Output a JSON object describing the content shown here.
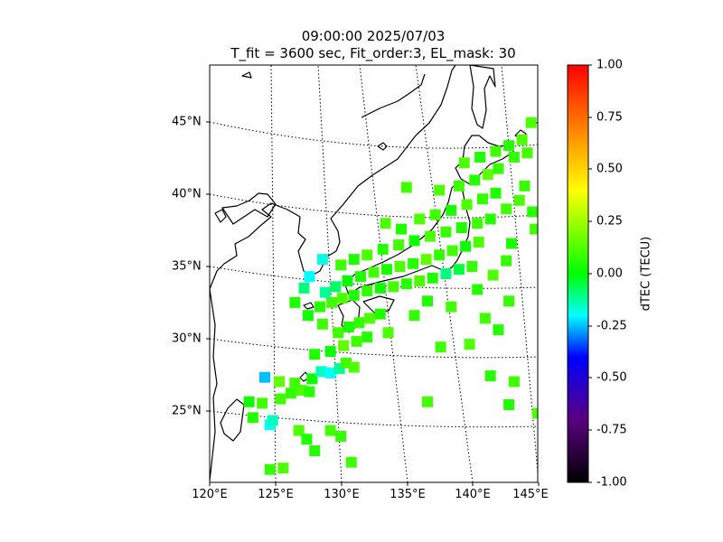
{
  "title_line1": "09:00:00 2025/07/03",
  "title_line2": "T_fit = 3600 sec, Fit_order:3, EL_mask: 30",
  "map": {
    "lon_range": [
      120,
      145
    ],
    "lat_range": [
      20,
      49
    ],
    "lon_ticks": [
      "120°E",
      "125°E",
      "130°E",
      "135°E",
      "140°E",
      "145°E"
    ],
    "lat_ticks": [
      "25°N",
      "30°N",
      "35°N",
      "40°N",
      "45°N"
    ],
    "graticule": "dotted",
    "coastline_color": "#000000"
  },
  "colorbar": {
    "label": "dTEC (TECU)",
    "range": [
      -1.0,
      1.0
    ],
    "ticks": [
      "1.00",
      "0.75",
      "0.50",
      "0.25",
      "0.00",
      "-0.25",
      "-0.50",
      "-0.75",
      "-1.00"
    ],
    "colormap": [
      "#000000",
      "#5a0080",
      "#0000ff",
      "#00ffff",
      "#00ff00",
      "#ffff00",
      "#ff0000"
    ]
  },
  "dtec_points": [
    [
      124.6,
      24.0,
      -0.2
    ],
    [
      124.8,
      24.3,
      -0.15
    ],
    [
      123.3,
      24.5,
      0.05
    ],
    [
      124.0,
      25.5,
      0.1
    ],
    [
      123.0,
      25.6,
      0.02
    ],
    [
      125.4,
      25.8,
      0.1
    ],
    [
      126.2,
      26.2,
      0.08
    ],
    [
      127.0,
      26.4,
      0.12
    ],
    [
      127.6,
      26.3,
      0.06
    ],
    [
      126.5,
      26.9,
      0.1
    ],
    [
      125.3,
      27.0,
      0.15
    ],
    [
      124.2,
      27.3,
      -0.25
    ],
    [
      127.8,
      27.2,
      0.02
    ],
    [
      128.5,
      27.7,
      -0.15
    ],
    [
      129.2,
      27.6,
      -0.2
    ],
    [
      129.9,
      27.9,
      -0.12
    ],
    [
      130.4,
      28.3,
      0.1
    ],
    [
      131.0,
      28.0,
      0.12
    ],
    [
      128.0,
      28.9,
      0.05
    ],
    [
      129.2,
      29.1,
      0.02
    ],
    [
      130.2,
      29.5,
      0.15
    ],
    [
      131.2,
      29.8,
      0.1
    ],
    [
      132.0,
      30.1,
      0.06
    ],
    [
      129.8,
      30.4,
      0.1
    ],
    [
      130.6,
      30.8,
      0.04
    ],
    [
      131.4,
      31.1,
      0.08
    ],
    [
      132.2,
      31.4,
      0.12
    ],
    [
      133.0,
      31.7,
      0.05
    ],
    [
      128.6,
      31.0,
      0.1
    ],
    [
      127.5,
      31.6,
      0.02
    ],
    [
      128.4,
      32.2,
      0.06
    ],
    [
      129.3,
      32.5,
      0.1
    ],
    [
      130.1,
      32.8,
      0.12
    ],
    [
      131.0,
      33.0,
      0.05
    ],
    [
      132.0,
      33.3,
      0.08
    ],
    [
      133.0,
      33.5,
      0.02
    ],
    [
      134.0,
      33.6,
      0.1
    ],
    [
      135.0,
      33.8,
      0.06
    ],
    [
      136.0,
      34.0,
      0.12
    ],
    [
      137.0,
      34.2,
      0.05
    ],
    [
      138.0,
      34.5,
      -0.1
    ],
    [
      139.0,
      34.8,
      -0.05
    ],
    [
      140.0,
      35.0,
      0.08
    ],
    [
      128.8,
      33.2,
      -0.12
    ],
    [
      129.6,
      33.6,
      -0.08
    ],
    [
      130.5,
      34.0,
      0.0
    ],
    [
      131.5,
      34.3,
      0.05
    ],
    [
      132.5,
      34.6,
      0.1
    ],
    [
      133.5,
      34.8,
      0.04
    ],
    [
      134.5,
      35.0,
      0.12
    ],
    [
      135.5,
      35.2,
      0.06
    ],
    [
      136.5,
      35.5,
      0.15
    ],
    [
      137.5,
      35.8,
      0.08
    ],
    [
      138.5,
      36.1,
      0.1
    ],
    [
      139.5,
      36.4,
      0.02
    ],
    [
      140.5,
      36.7,
      0.12
    ],
    [
      130.0,
      35.1,
      0.1
    ],
    [
      131.0,
      35.5,
      0.05
    ],
    [
      132.0,
      35.8,
      0.12
    ],
    [
      133.2,
      36.2,
      0.06
    ],
    [
      134.4,
      36.5,
      0.1
    ],
    [
      135.6,
      36.8,
      0.02
    ],
    [
      136.8,
      37.1,
      0.12
    ],
    [
      138.0,
      37.4,
      0.08
    ],
    [
      139.2,
      37.7,
      0.05
    ],
    [
      140.4,
      38.0,
      0.1
    ],
    [
      141.4,
      38.3,
      0.06
    ],
    [
      136.0,
      38.3,
      0.12
    ],
    [
      137.2,
      38.6,
      0.1
    ],
    [
      138.4,
      38.9,
      0.04
    ],
    [
      139.6,
      39.3,
      0.12
    ],
    [
      140.8,
      39.7,
      0.08
    ],
    [
      141.8,
      40.1,
      0.05
    ],
    [
      137.5,
      40.3,
      0.12
    ],
    [
      139.0,
      40.6,
      0.1
    ],
    [
      140.2,
      41.0,
      0.06
    ],
    [
      141.2,
      41.4,
      0.15
    ],
    [
      142.0,
      41.8,
      0.08
    ],
    [
      139.4,
      42.2,
      0.12
    ],
    [
      140.6,
      42.6,
      0.05
    ],
    [
      141.8,
      43.0,
      0.1
    ],
    [
      142.8,
      43.4,
      0.06
    ],
    [
      143.8,
      43.8,
      0.12
    ],
    [
      143.2,
      42.6,
      0.08
    ],
    [
      144.2,
      42.9,
      0.1
    ],
    [
      144.5,
      45.0,
      0.12
    ],
    [
      135.0,
      40.5,
      0.1
    ],
    [
      128.6,
      35.5,
      -0.18
    ],
    [
      127.6,
      34.3,
      -0.2
    ],
    [
      127.2,
      33.5,
      -0.1
    ],
    [
      126.5,
      32.5,
      0.05
    ],
    [
      137.6,
      29.4,
      0.1
    ],
    [
      139.8,
      29.6,
      0.12
    ],
    [
      142.8,
      32.6,
      0.08
    ],
    [
      143.2,
      27.0,
      0.1
    ],
    [
      141.4,
      27.4,
      0.06
    ],
    [
      126.8,
      23.6,
      0.12
    ],
    [
      127.4,
      23.0,
      0.05
    ],
    [
      129.2,
      23.6,
      0.1
    ],
    [
      130.0,
      23.2,
      0.08
    ],
    [
      128.0,
      22.2,
      0.06
    ],
    [
      130.8,
      21.4,
      0.1
    ],
    [
      125.6,
      21.0,
      0.12
    ],
    [
      124.6,
      20.9,
      0.08
    ],
    [
      145.0,
      24.8,
      0.12
    ],
    [
      136.6,
      25.6,
      0.1
    ],
    [
      142.8,
      25.4,
      0.05
    ],
    [
      141.0,
      31.4,
      0.1
    ],
    [
      142.0,
      30.6,
      0.06
    ],
    [
      133.6,
      30.4,
      0.12
    ],
    [
      135.6,
      31.6,
      0.08
    ],
    [
      136.6,
      32.6,
      0.05
    ],
    [
      138.4,
      32.2,
      0.1
    ],
    [
      140.4,
      33.4,
      0.06
    ],
    [
      141.6,
      34.4,
      0.12
    ],
    [
      142.6,
      35.4,
      0.08
    ],
    [
      143.0,
      36.6,
      0.05
    ],
    [
      144.8,
      37.6,
      0.1
    ],
    [
      144.6,
      38.8,
      0.06
    ],
    [
      143.6,
      39.6,
      0.12
    ],
    [
      144.0,
      40.6,
      0.08
    ],
    [
      142.6,
      39.0,
      0.1
    ],
    [
      134.6,
      37.6,
      0.05
    ],
    [
      133.4,
      38.0,
      0.12
    ]
  ]
}
